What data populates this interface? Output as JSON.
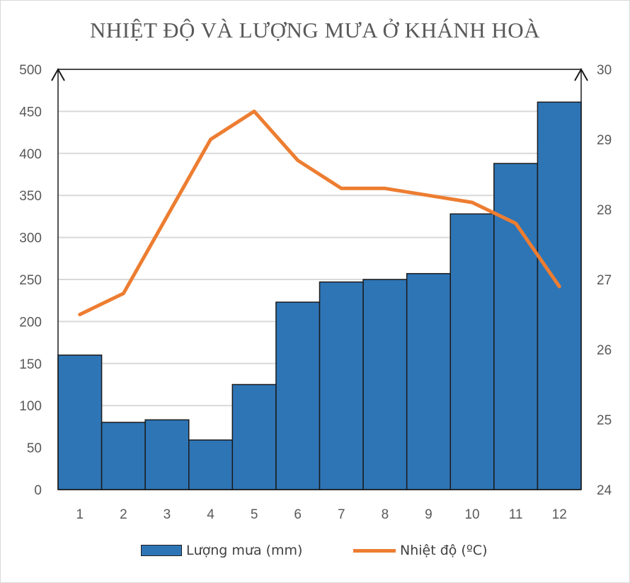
{
  "chart_data": {
    "type": "bar",
    "title": "NHIỆT ĐỘ VÀ LƯỢNG MƯA Ở KHÁNH HOÀ",
    "categories": [
      "1",
      "2",
      "3",
      "4",
      "5",
      "6",
      "7",
      "8",
      "9",
      "10",
      "11",
      "12"
    ],
    "series": [
      {
        "name": "Lượng mưa (mm)",
        "type": "bar",
        "axis": "left",
        "color": "#2e75b6",
        "values": [
          160,
          80,
          83,
          59,
          125,
          223,
          247,
          250,
          257,
          328,
          388,
          461
        ]
      },
      {
        "name": "Nhiệt độ (ºC)",
        "type": "line",
        "axis": "right",
        "color": "#ed7d31",
        "values": [
          26.5,
          26.8,
          27.9,
          29.0,
          29.4,
          28.7,
          28.3,
          28.3,
          28.2,
          28.1,
          27.8,
          26.9
        ]
      }
    ],
    "y_left": {
      "min": 0,
      "max": 500,
      "ticks": [
        "0",
        "50",
        "100",
        "150",
        "200",
        "250",
        "300",
        "350",
        "400",
        "450",
        "500"
      ]
    },
    "y_right": {
      "min": 24,
      "max": 30,
      "ticks": [
        "24",
        "25",
        "26",
        "27",
        "28",
        "29",
        "30"
      ]
    },
    "grid": true,
    "legend_position": "bottom"
  }
}
